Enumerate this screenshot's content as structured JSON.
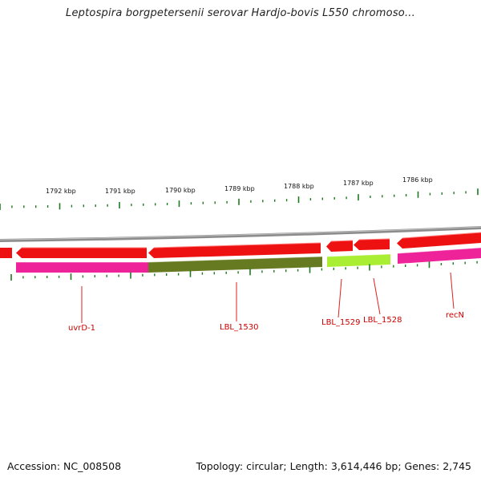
{
  "title": "Leptospira borgpetersenii serovar Hardjo-bovis L550 chromoso...",
  "footer": {
    "accession": "Accession: NC_008508",
    "topology": "Topology: circular; Length: 3,614,446 bp; Genes: 2,745"
  },
  "scale_labels": [
    "1792 kbp",
    "1791 kbp",
    "1790 kbp",
    "1789 kbp",
    "1788 kbp",
    "1787 kbp",
    "1786 kbp"
  ],
  "gene_labels": [
    "uvrD-1",
    "LBL_1530",
    "LBL_1529",
    "LBL_1528",
    "recN"
  ],
  "colors": {
    "backbone": "#8c8c8c",
    "cds_arrow": "#ee1111",
    "magenta_band": "#ee2299",
    "olive_band": "#667a22",
    "lime_band": "#aaee33",
    "ticks": "#1e7a1e",
    "gene_label": "#cc0000"
  }
}
